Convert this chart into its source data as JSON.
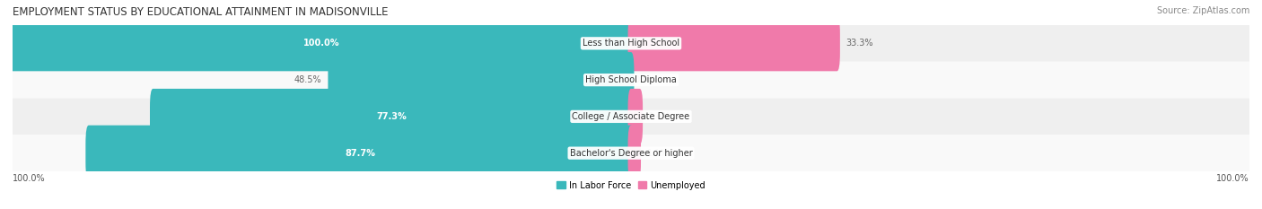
{
  "title": "EMPLOYMENT STATUS BY EDUCATIONAL ATTAINMENT IN MADISONVILLE",
  "source": "Source: ZipAtlas.com",
  "categories": [
    "Less than High School",
    "High School Diploma",
    "College / Associate Degree",
    "Bachelor's Degree or higher"
  ],
  "in_labor_force": [
    100.0,
    48.5,
    77.3,
    87.7
  ],
  "unemployed": [
    33.3,
    0.0,
    1.4,
    1.1
  ],
  "labor_force_color": "#3ab8bb",
  "unemployed_color": "#f07aaa",
  "row_bg_even": "#efefef",
  "row_bg_odd": "#f9f9f9",
  "x_min": -100.0,
  "x_max": 100.0,
  "axis_label_left": "100.0%",
  "axis_label_right": "100.0%",
  "legend_labor": "In Labor Force",
  "legend_unemployed": "Unemployed",
  "title_fontsize": 8.5,
  "source_fontsize": 7.0,
  "bar_label_fontsize": 7.0,
  "category_fontsize": 7.0,
  "axis_fontsize": 7.0,
  "background_color": "#ffffff",
  "label_inside_threshold": 60.0
}
